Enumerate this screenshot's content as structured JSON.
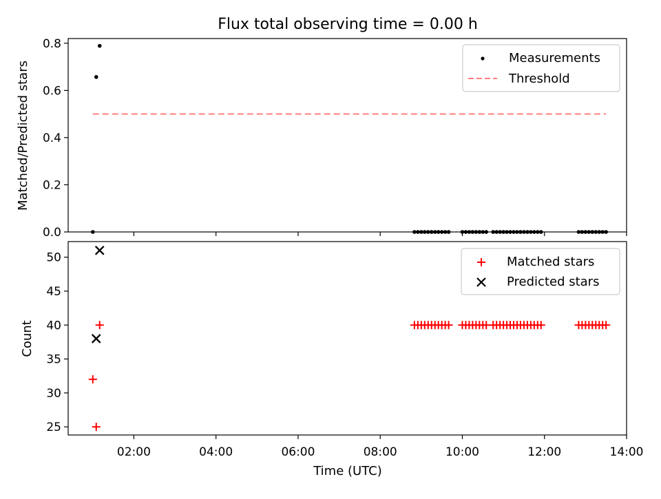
{
  "title": "Flux total observing time = 0.00 h",
  "top_ylabel": "Matched/Predicted stars",
  "bottom_ylabel": "Count",
  "xlabel": "Time (UTC)",
  "legend_top": {
    "measurements": "Measurements",
    "threshold": "Threshold"
  },
  "legend_bottom": {
    "matched": "Matched stars",
    "predicted": "Predicted stars"
  },
  "colors": {
    "measurements": "#000000",
    "threshold": "#ff7f7f",
    "matched": "#ff0000",
    "predicted": "#000000"
  },
  "chart_data": [
    {
      "type": "scatter",
      "panel": "top",
      "x_axis": {
        "type": "time",
        "ticks": [
          "02:00",
          "04:00",
          "06:00",
          "08:00",
          "10:00",
          "12:00",
          "14:00"
        ],
        "range_hours": [
          0.4,
          14.0
        ]
      },
      "ylabel": "Matched/Predicted stars",
      "ylim": [
        0.0,
        0.82
      ],
      "yticks": [
        0.0,
        0.2,
        0.4,
        0.6,
        0.8
      ],
      "series": [
        {
          "name": "Measurements",
          "marker": "dot",
          "x": [
            "01:00",
            "01:05",
            "01:10",
            "08:50",
            "08:55",
            "09:00",
            "09:05",
            "09:10",
            "09:15",
            "09:20",
            "09:25",
            "09:30",
            "09:35",
            "09:40",
            "10:00",
            "10:05",
            "10:10",
            "10:15",
            "10:20",
            "10:25",
            "10:30",
            "10:35",
            "10:45",
            "10:50",
            "10:55",
            "11:00",
            "11:05",
            "11:10",
            "11:15",
            "11:20",
            "11:25",
            "11:30",
            "11:35",
            "11:40",
            "11:45",
            "11:50",
            "11:55",
            "12:50",
            "12:55",
            "13:00",
            "13:05",
            "13:10",
            "13:15",
            "13:20",
            "13:25",
            "13:30"
          ],
          "y": [
            0.0,
            0.657,
            0.789,
            0,
            0,
            0,
            0,
            0,
            0,
            0,
            0,
            0,
            0,
            0,
            0,
            0,
            0,
            0,
            0,
            0,
            0,
            0,
            0,
            0,
            0,
            0,
            0,
            0,
            0,
            0,
            0,
            0,
            0,
            0,
            0,
            0,
            0,
            0,
            0,
            0,
            0,
            0,
            0,
            0,
            0,
            0
          ]
        },
        {
          "name": "Threshold",
          "style": "dashed",
          "x": [
            "01:00",
            "13:30"
          ],
          "y": [
            0.5,
            0.5
          ]
        }
      ],
      "legend": "top-right"
    },
    {
      "type": "scatter",
      "panel": "bottom",
      "x_axis": {
        "type": "time",
        "ticks": [
          "02:00",
          "04:00",
          "06:00",
          "08:00",
          "10:00",
          "12:00",
          "14:00"
        ],
        "range_hours": [
          0.4,
          14.0
        ]
      },
      "xlabel": "Time (UTC)",
      "ylabel": "Count",
      "ylim": [
        23.8,
        52.3
      ],
      "yticks": [
        25,
        30,
        35,
        40,
        45,
        50
      ],
      "series": [
        {
          "name": "Matched stars",
          "marker": "plus",
          "x": [
            "01:00",
            "01:05",
            "01:10",
            "08:50",
            "08:55",
            "09:00",
            "09:05",
            "09:10",
            "09:15",
            "09:20",
            "09:25",
            "09:30",
            "09:35",
            "09:40",
            "10:00",
            "10:05",
            "10:10",
            "10:15",
            "10:20",
            "10:25",
            "10:30",
            "10:35",
            "10:45",
            "10:50",
            "10:55",
            "11:00",
            "11:05",
            "11:10",
            "11:15",
            "11:20",
            "11:25",
            "11:30",
            "11:35",
            "11:40",
            "11:45",
            "11:50",
            "11:55",
            "12:50",
            "12:55",
            "13:00",
            "13:05",
            "13:10",
            "13:15",
            "13:20",
            "13:25",
            "13:30"
          ],
          "y": [
            32,
            25,
            40,
            40,
            40,
            40,
            40,
            40,
            40,
            40,
            40,
            40,
            40,
            40,
            40,
            40,
            40,
            40,
            40,
            40,
            40,
            40,
            40,
            40,
            40,
            40,
            40,
            40,
            40,
            40,
            40,
            40,
            40,
            40,
            40,
            40,
            40,
            40,
            40,
            40,
            40,
            40,
            40,
            40,
            40,
            40
          ]
        },
        {
          "name": "Predicted stars",
          "marker": "x",
          "x": [
            "01:05",
            "01:10"
          ],
          "y": [
            38,
            51
          ]
        }
      ],
      "legend": "top-right"
    }
  ]
}
